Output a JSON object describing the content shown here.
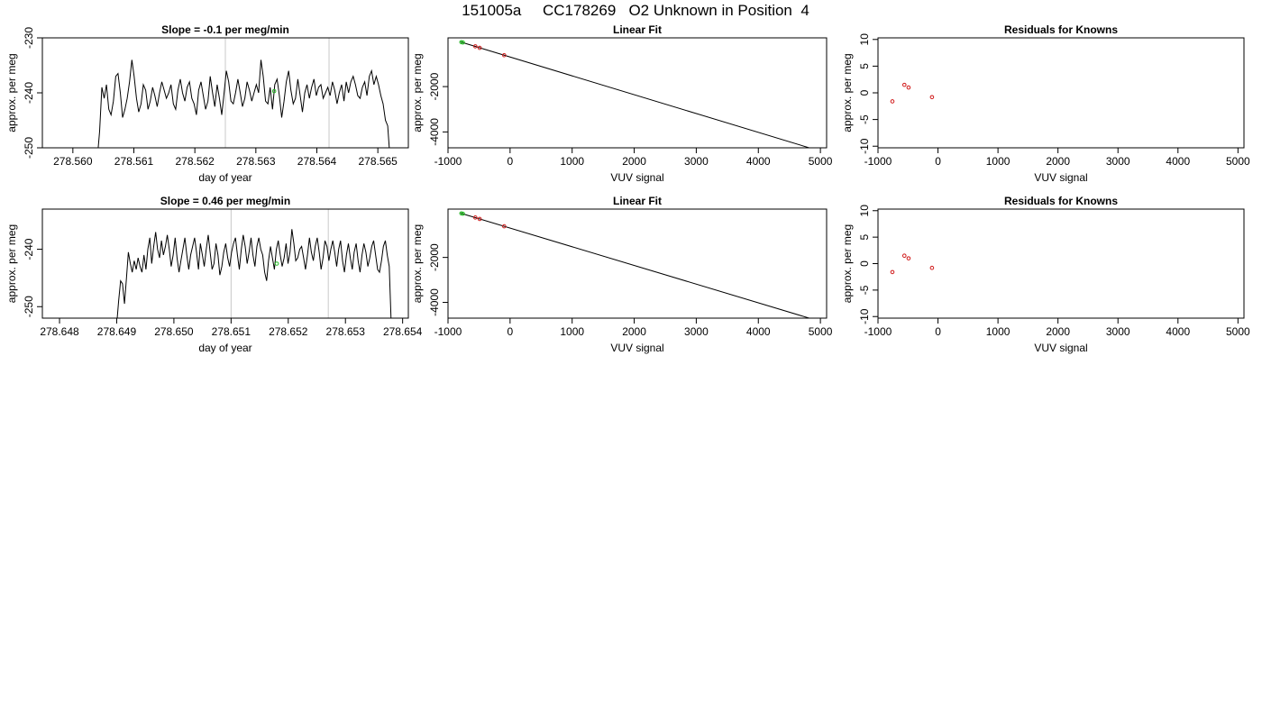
{
  "figure": {
    "title": "151005a     CC178269   O2 Unknown in Position  4"
  },
  "chart_data": [
    {
      "type": "line",
      "title": "Slope =  -0.1  per meg/min",
      "xlabel": "day of year",
      "ylabel": "approx. per meg",
      "xlim": [
        278.5595,
        278.5655
      ],
      "ylim": [
        -250,
        -230
      ],
      "xticks": [
        278.56,
        278.561,
        278.562,
        278.563,
        278.564,
        278.565
      ],
      "xtick_labels": [
        "278.560",
        "278.561",
        "278.562",
        "278.563",
        "278.564",
        "278.565"
      ],
      "yticks": [
        -250,
        -240,
        -230
      ],
      "ytick_labels": [
        "-250",
        "-240",
        "-230"
      ],
      "vlines": [
        278.5625,
        278.5642
      ],
      "highlight_point": {
        "x": 278.5633,
        "y": -239.7
      },
      "series": [
        {
          "x_start": 278.5604,
          "x_end": 278.5652,
          "y": [
            -252,
            -247,
            -239,
            -241,
            -238.5,
            -243,
            -244,
            -241.5,
            -237,
            -236.5,
            -240,
            -244.5,
            -243,
            -241,
            -238,
            -234,
            -237,
            -241,
            -243.5,
            -242,
            -238.5,
            -239.5,
            -243,
            -241.5,
            -239,
            -240.5,
            -242.5,
            -240,
            -238,
            -239.5,
            -241,
            -240,
            -238.5,
            -242,
            -243,
            -239.5,
            -237.5,
            -240,
            -241.5,
            -239,
            -238,
            -241,
            -242,
            -244,
            -239.5,
            -238,
            -240.5,
            -243,
            -241.5,
            -237,
            -240,
            -242.5,
            -238.5,
            -241,
            -244,
            -240,
            -236,
            -238,
            -241.5,
            -242,
            -240,
            -237.5,
            -240,
            -242.5,
            -241,
            -238,
            -239.5,
            -241.5,
            -240,
            -238.5,
            -240,
            -234,
            -237,
            -241.5,
            -242,
            -239,
            -243,
            -238.5,
            -237.5,
            -240.5,
            -244.5,
            -241.5,
            -238,
            -236,
            -239.5,
            -242,
            -241,
            -237.5,
            -240.5,
            -243.5,
            -240,
            -238.5,
            -241,
            -239,
            -237.5,
            -240.5,
            -239,
            -238.5,
            -241,
            -240,
            -239,
            -240.5,
            -238,
            -239.5,
            -242,
            -240,
            -238.5,
            -241.5,
            -238,
            -240,
            -238,
            -237,
            -238.5,
            -240.5,
            -241,
            -239,
            -238,
            -240.5,
            -237,
            -236,
            -238.5,
            -237,
            -238.5,
            -240.5,
            -242,
            -245,
            -246,
            -252
          ]
        }
      ]
    },
    {
      "type": "scatter",
      "title": "Linear Fit",
      "xlabel": "VUV signal",
      "ylabel": "approx. per meg",
      "xlim": [
        -1000,
        5100
      ],
      "ylim": [
        -4700,
        150
      ],
      "xticks": [
        -1000,
        0,
        1000,
        2000,
        3000,
        4000,
        5000
      ],
      "xtick_labels": [
        "-1000",
        "0",
        "1000",
        "2000",
        "3000",
        "4000",
        "5000"
      ],
      "yticks": [
        -4000,
        -2000
      ],
      "ytick_labels": [
        "-4000",
        "-2000"
      ],
      "fit_line": {
        "x": [
          -800,
          4880
        ],
        "y": [
          -30,
          -4750
        ]
      },
      "points": [
        {
          "x": -560,
          "y": -225,
          "color": "#d01818"
        },
        {
          "x": -490,
          "y": -290,
          "color": "#d01818"
        },
        {
          "x": -95,
          "y": -615,
          "color": "#d01818"
        }
      ],
      "highlight_points": [
        {
          "x": -785,
          "y": -40,
          "color": "#22bb22"
        },
        {
          "x": -760,
          "y": -55,
          "color": "#22bb22"
        }
      ]
    },
    {
      "type": "scatter",
      "title": "Residuals for Knowns",
      "xlabel": "VUV signal",
      "ylabel": "approx. per meg",
      "xlim": [
        -1000,
        5100
      ],
      "ylim": [
        -10.3,
        10.3
      ],
      "xticks": [
        -1000,
        0,
        1000,
        2000,
        3000,
        4000,
        5000
      ],
      "xtick_labels": [
        "-1000",
        "0",
        "1000",
        "2000",
        "3000",
        "4000",
        "5000"
      ],
      "yticks": [
        -10,
        -5,
        0,
        5,
        10
      ],
      "ytick_labels": [
        "-10",
        "-5",
        "0",
        "5",
        "10"
      ],
      "points": [
        {
          "x": -760,
          "y": -1.6,
          "color": "#d01818"
        },
        {
          "x": -560,
          "y": 1.5,
          "color": "#d01818"
        },
        {
          "x": -490,
          "y": 1.0,
          "color": "#d01818"
        },
        {
          "x": -100,
          "y": -0.8,
          "color": "#d01818"
        }
      ]
    },
    {
      "type": "line",
      "title": "Slope =  0.46  per meg/min",
      "xlabel": "day of year",
      "ylabel": "approx. per meg",
      "xlim": [
        278.6477,
        278.6541
      ],
      "ylim": [
        -252,
        -233
      ],
      "xticks": [
        278.648,
        278.649,
        278.65,
        278.651,
        278.652,
        278.653,
        278.654
      ],
      "xtick_labels": [
        "278.648",
        "278.649",
        "278.650",
        "278.651",
        "278.652",
        "278.653",
        "278.654"
      ],
      "yticks": [
        -250,
        -240
      ],
      "ytick_labels": [
        "-250",
        "-240"
      ],
      "vlines": [
        278.651,
        278.6527
      ],
      "highlight_point": {
        "x": 278.6518,
        "y": -242.5
      },
      "series": [
        {
          "x_start": 278.649,
          "x_end": 278.6538,
          "y": [
            -253,
            -249,
            -245.5,
            -246,
            -249.5,
            -245,
            -240.5,
            -242.5,
            -244,
            -242,
            -243.5,
            -241.5,
            -243,
            -244,
            -241,
            -243.5,
            -240,
            -238,
            -242.5,
            -239.5,
            -237,
            -240,
            -241.5,
            -238.5,
            -241,
            -239.5,
            -237.5,
            -240,
            -243,
            -241,
            -238,
            -241.5,
            -244,
            -242,
            -240,
            -238,
            -241,
            -243.5,
            -241,
            -239.5,
            -238,
            -240.5,
            -243.5,
            -239,
            -241,
            -243,
            -240,
            -237.5,
            -240.5,
            -243.5,
            -242.5,
            -239,
            -241,
            -244.5,
            -243,
            -240.5,
            -239,
            -241.5,
            -243,
            -240.5,
            -239,
            -238,
            -241,
            -243.5,
            -240,
            -237.5,
            -239.5,
            -242.5,
            -240.5,
            -238,
            -241,
            -243,
            -239.5,
            -238,
            -240,
            -241,
            -244,
            -245.5,
            -242,
            -239.5,
            -241.5,
            -243.5,
            -240,
            -238.5,
            -241,
            -243,
            -241.5,
            -239,
            -242.5,
            -240.5,
            -236.5,
            -239,
            -242,
            -241.5,
            -240,
            -239.5,
            -241.5,
            -243.5,
            -241,
            -238,
            -240.5,
            -242,
            -239.5,
            -238,
            -240.5,
            -243.5,
            -241.5,
            -238.5,
            -239.5,
            -242,
            -240,
            -238.5,
            -240.5,
            -243,
            -240,
            -238.5,
            -242,
            -244,
            -241,
            -239,
            -241.5,
            -243.5,
            -240.5,
            -239,
            -242,
            -244,
            -241,
            -239,
            -240.5,
            -243,
            -241.5,
            -239.5,
            -238.5,
            -241,
            -243.5,
            -244,
            -242,
            -239.5,
            -238.5,
            -241,
            -243,
            -253
          ]
        }
      ]
    },
    {
      "type": "scatter",
      "title": "Linear Fit",
      "xlabel": "VUV signal",
      "ylabel": "approx. per meg",
      "xlim": [
        -1000,
        5100
      ],
      "ylim": [
        -4700,
        150
      ],
      "xticks": [
        -1000,
        0,
        1000,
        2000,
        3000,
        4000,
        5000
      ],
      "xtick_labels": [
        "-1000",
        "0",
        "1000",
        "2000",
        "3000",
        "4000",
        "5000"
      ],
      "yticks": [
        -4000,
        -2000
      ],
      "ytick_labels": [
        "-4000",
        "-2000"
      ],
      "fit_line": {
        "x": [
          -800,
          4880
        ],
        "y": [
          -30,
          -4750
        ]
      },
      "points": [
        {
          "x": -560,
          "y": -225,
          "color": "#d01818"
        },
        {
          "x": -490,
          "y": -290,
          "color": "#d01818"
        },
        {
          "x": -95,
          "y": -615,
          "color": "#d01818"
        }
      ],
      "highlight_points": [
        {
          "x": -785,
          "y": -40,
          "color": "#22bb22"
        },
        {
          "x": -760,
          "y": -55,
          "color": "#22bb22"
        }
      ]
    },
    {
      "type": "scatter",
      "title": "Residuals for Knowns",
      "xlabel": "VUV signal",
      "ylabel": "approx. per meg",
      "xlim": [
        -1000,
        5100
      ],
      "ylim": [
        -10.3,
        10.3
      ],
      "xticks": [
        -1000,
        0,
        1000,
        2000,
        3000,
        4000,
        5000
      ],
      "xtick_labels": [
        "-1000",
        "0",
        "1000",
        "2000",
        "3000",
        "4000",
        "5000"
      ],
      "yticks": [
        -10,
        -5,
        0,
        5,
        10
      ],
      "ytick_labels": [
        "-10",
        "-5",
        "0",
        "5",
        "10"
      ],
      "points": [
        {
          "x": -760,
          "y": -1.6,
          "color": "#d01818"
        },
        {
          "x": -560,
          "y": 1.5,
          "color": "#d01818"
        },
        {
          "x": -490,
          "y": 1.0,
          "color": "#d01818"
        },
        {
          "x": -100,
          "y": -0.8,
          "color": "#d01818"
        }
      ]
    }
  ]
}
